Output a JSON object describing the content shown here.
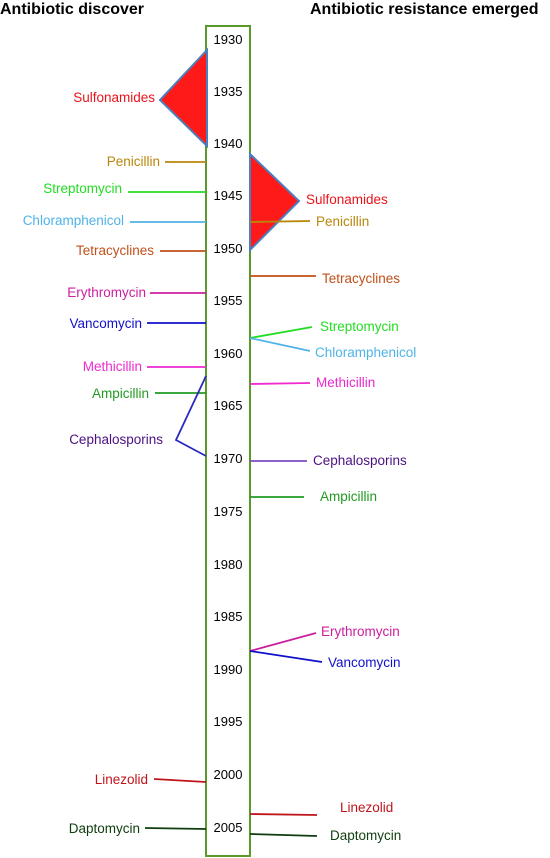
{
  "headers": {
    "discovery": "Antibiotic discover",
    "resistance": "Antibiotic resistance emerged"
  },
  "timeline": {
    "years": [
      "1930",
      "1935",
      "1940",
      "1945",
      "1950",
      "1955",
      "1960",
      "1965",
      "1970",
      "1975",
      "1980",
      "1985",
      "1990",
      "1995",
      "2000",
      "2005"
    ]
  },
  "discovery": [
    {
      "id": "sulfonamides",
      "label": "Sulfonamides",
      "color": "#e8141b"
    },
    {
      "id": "penicillin",
      "label": "Penicillin",
      "color": "#b8860b"
    },
    {
      "id": "streptomycin",
      "label": "Streptomycin",
      "color": "#22dd22"
    },
    {
      "id": "chloramphenicol",
      "label": "Chloramphenicol",
      "color": "#4fb3e8"
    },
    {
      "id": "tetracyclines",
      "label": "Tetracyclines",
      "color": "#c0501b"
    },
    {
      "id": "erythromycin",
      "label": "Erythromycin",
      "color": "#cc1f9e"
    },
    {
      "id": "vancomycin",
      "label": "Vancomycin",
      "color": "#1010cc"
    },
    {
      "id": "methicillin",
      "label": "Methicillin",
      "color": "#ee2ad0"
    },
    {
      "id": "ampicillin",
      "label": "Ampicillin",
      "color": "#229922"
    },
    {
      "id": "cephalosporins",
      "label": "Cephalosporins",
      "color": "#4b1183"
    },
    {
      "id": "linezolid",
      "label": "Linezolid",
      "color": "#c0141b"
    },
    {
      "id": "daptomycin",
      "label": "Daptomycin",
      "color": "#0f3d0f"
    }
  ],
  "resistance": [
    {
      "id": "sulfonamides",
      "label": "Sulfonamides",
      "color": "#e8141b"
    },
    {
      "id": "penicillin",
      "label": "Penicillin",
      "color": "#b8860b"
    },
    {
      "id": "tetracyclines",
      "label": "Tetracyclines",
      "color": "#c0501b"
    },
    {
      "id": "streptomycin",
      "label": "Streptomycin",
      "color": "#22dd22"
    },
    {
      "id": "chloramphenicol",
      "label": "Chloramphenicol",
      "color": "#4fb3e8"
    },
    {
      "id": "methicillin",
      "label": "Methicillin",
      "color": "#ee2ad0"
    },
    {
      "id": "cephalosporins",
      "label": "Cephalosporins",
      "color": "#4b1183"
    },
    {
      "id": "ampicillin",
      "label": "Ampicillin",
      "color": "#229922"
    },
    {
      "id": "erythromycin",
      "label": "Erythromycin",
      "color": "#cc1f9e"
    },
    {
      "id": "vancomycin",
      "label": "Vancomycin",
      "color": "#1010cc"
    },
    {
      "id": "linezolid",
      "label": "Linezolid",
      "color": "#c0141b"
    },
    {
      "id": "daptomycin",
      "label": "Daptomycin",
      "color": "#0f3d0f"
    }
  ],
  "colors": {
    "timeline_border": "#5a9a2a",
    "triangle_fill": "#ff1a1a",
    "triangle_stroke": "#4a7fc0"
  }
}
